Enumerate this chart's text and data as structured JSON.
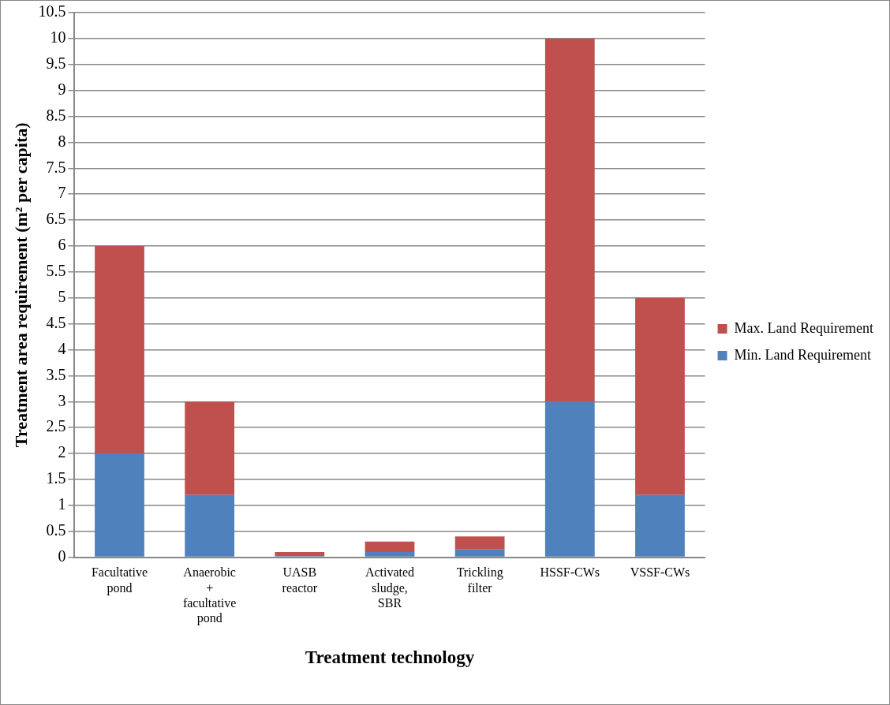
{
  "chart_data": {
    "type": "bar",
    "stacked": true,
    "xlabel": "Treatment technology",
    "ylabel": "Treatment area requirement (m² per capita)",
    "categories": [
      "Facultative pond",
      "Anaerobic + facultative pond",
      "UASB reactor",
      "Activated sludge, SBR",
      "Trickling filter",
      "HSSF-CWs",
      "VSSF-CWs"
    ],
    "series": [
      {
        "name": "Min. Land Requirement",
        "color": "#4f81bd",
        "values": [
          2,
          1.2,
          0.02,
          0.1,
          0.15,
          3,
          1.2
        ]
      },
      {
        "name": "Max. Land Requirement",
        "color": "#c0504d",
        "values": [
          4,
          1.8,
          0.08,
          0.2,
          0.25,
          7,
          3.8
        ]
      }
    ],
    "ylim": [
      0,
      10.5
    ],
    "yticks": [
      0,
      0.5,
      1,
      1.5,
      2,
      2.5,
      3,
      3.5,
      4,
      4.5,
      5,
      5.5,
      6,
      6.5,
      7,
      7.5,
      8,
      8.5,
      9,
      9.5,
      10,
      10.5
    ],
    "grid": "y",
    "legend": "right"
  }
}
